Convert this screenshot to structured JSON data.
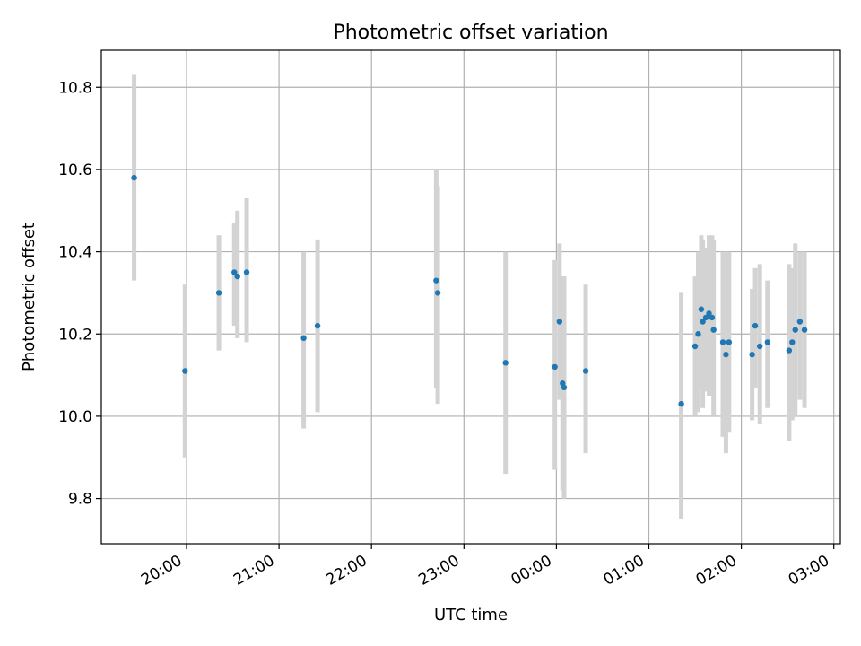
{
  "chart_data": {
    "type": "scatter",
    "title": "Photometric offset variation",
    "xlabel": "UTC time",
    "ylabel": "Photometric offset",
    "x_axis": "time",
    "x_ticks": [
      "20:00",
      "21:00",
      "22:00",
      "23:00",
      "00:00",
      "01:00",
      "02:00",
      "03:00"
    ],
    "y_ticks": [
      "9.8",
      "10.0",
      "10.2",
      "10.4",
      "10.6",
      "10.8"
    ],
    "ylim": [
      9.69,
      10.89
    ],
    "grid": true,
    "errorbar_color": "#d3d3d3",
    "marker_color": "#1f77b4",
    "points": [
      {
        "time": "19:26",
        "y": 10.58,
        "ylo": 10.33,
        "yhi": 10.83
      },
      {
        "time": "19:59",
        "y": 10.11,
        "ylo": 9.9,
        "yhi": 10.32
      },
      {
        "time": "20:21",
        "y": 10.3,
        "ylo": 10.16,
        "yhi": 10.44
      },
      {
        "time": "20:31",
        "y": 10.35,
        "ylo": 10.22,
        "yhi": 10.47
      },
      {
        "time": "20:33",
        "y": 10.34,
        "ylo": 10.19,
        "yhi": 10.5
      },
      {
        "time": "20:39",
        "y": 10.35,
        "ylo": 10.18,
        "yhi": 10.53
      },
      {
        "time": "21:16",
        "y": 10.19,
        "ylo": 9.97,
        "yhi": 10.4
      },
      {
        "time": "21:25",
        "y": 10.22,
        "ylo": 10.01,
        "yhi": 10.43
      },
      {
        "time": "22:42",
        "y": 10.33,
        "ylo": 10.07,
        "yhi": 10.6
      },
      {
        "time": "22:43",
        "y": 10.3,
        "ylo": 10.03,
        "yhi": 10.56
      },
      {
        "time": "23:27",
        "y": 10.13,
        "ylo": 9.86,
        "yhi": 10.4
      },
      {
        "time": "23:59",
        "y": 10.12,
        "ylo": 9.87,
        "yhi": 10.38
      },
      {
        "time": "00:02",
        "y": 10.23,
        "ylo": 10.04,
        "yhi": 10.42
      },
      {
        "time": "00:04",
        "y": 10.08,
        "ylo": 9.82,
        "yhi": 10.34
      },
      {
        "time": "00:05",
        "y": 10.07,
        "ylo": 9.8,
        "yhi": 10.34
      },
      {
        "time": "00:19",
        "y": 10.11,
        "ylo": 9.91,
        "yhi": 10.32
      },
      {
        "time": "01:21",
        "y": 10.03,
        "ylo": 9.75,
        "yhi": 10.3
      },
      {
        "time": "01:30",
        "y": 10.17,
        "ylo": 10.0,
        "yhi": 10.34
      },
      {
        "time": "01:32",
        "y": 10.2,
        "ylo": 10.01,
        "yhi": 10.4
      },
      {
        "time": "01:34",
        "y": 10.26,
        "ylo": 10.07,
        "yhi": 10.44
      },
      {
        "time": "01:35",
        "y": 10.23,
        "ylo": 10.02,
        "yhi": 10.43
      },
      {
        "time": "01:37",
        "y": 10.24,
        "ylo": 10.06,
        "yhi": 10.41
      },
      {
        "time": "01:39",
        "y": 10.25,
        "ylo": 10.05,
        "yhi": 10.44
      },
      {
        "time": "01:41",
        "y": 10.24,
        "ylo": 10.05,
        "yhi": 10.44
      },
      {
        "time": "01:42",
        "y": 10.21,
        "ylo": 10.0,
        "yhi": 10.43
      },
      {
        "time": "01:48",
        "y": 10.18,
        "ylo": 9.95,
        "yhi": 10.4
      },
      {
        "time": "01:50",
        "y": 10.15,
        "ylo": 9.91,
        "yhi": 10.4
      },
      {
        "time": "01:52",
        "y": 10.18,
        "ylo": 9.96,
        "yhi": 10.4
      },
      {
        "time": "02:07",
        "y": 10.15,
        "ylo": 9.99,
        "yhi": 10.31
      },
      {
        "time": "02:09",
        "y": 10.22,
        "ylo": 10.07,
        "yhi": 10.36
      },
      {
        "time": "02:12",
        "y": 10.17,
        "ylo": 9.98,
        "yhi": 10.37
      },
      {
        "time": "02:17",
        "y": 10.18,
        "ylo": 10.02,
        "yhi": 10.33
      },
      {
        "time": "02:31",
        "y": 10.16,
        "ylo": 9.94,
        "yhi": 10.37
      },
      {
        "time": "02:33",
        "y": 10.18,
        "ylo": 9.99,
        "yhi": 10.36
      },
      {
        "time": "02:35",
        "y": 10.21,
        "ylo": 10.0,
        "yhi": 10.42
      },
      {
        "time": "02:38",
        "y": 10.23,
        "ylo": 10.04,
        "yhi": 10.4
      },
      {
        "time": "02:41",
        "y": 10.21,
        "ylo": 10.02,
        "yhi": 10.4
      }
    ]
  }
}
